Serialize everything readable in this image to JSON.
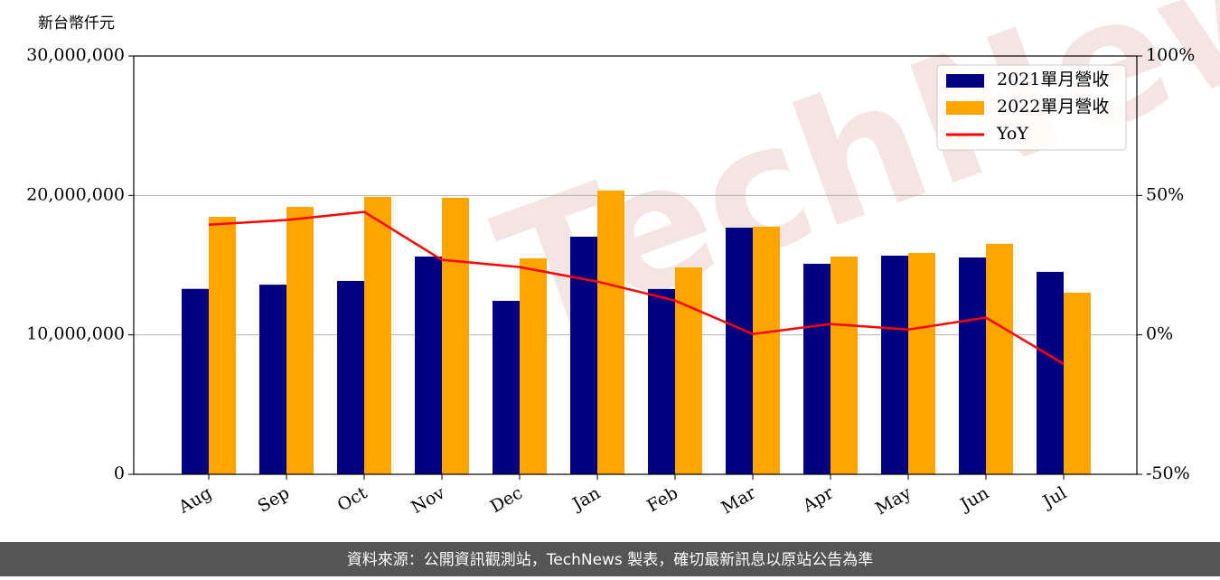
{
  "chart_data": {
    "type": "bar_line",
    "y_label": "新台幣仟元",
    "categories": [
      "Aug",
      "Sep",
      "Oct",
      "Nov",
      "Dec",
      "Jan",
      "Feb",
      "Mar",
      "Apr",
      "May",
      "Jun",
      "Jul"
    ],
    "series": [
      {
        "name": "2021單月營收",
        "color": "#000080",
        "type": "bar",
        "values": [
          13300000,
          13600000,
          13870000,
          15620000,
          12440000,
          17040000,
          13290000,
          17690000,
          15100000,
          15680000,
          15550000,
          14520000
        ]
      },
      {
        "name": "2022單月營收",
        "color": "#ffa500",
        "type": "bar",
        "values": [
          18470000,
          19180000,
          19900000,
          19830000,
          15490000,
          20350000,
          14840000,
          17760000,
          15620000,
          15880000,
          16530000,
          13030000
        ]
      },
      {
        "name": "YoY",
        "color": "#ff0000",
        "type": "line",
        "axis": "y2",
        "values": [
          39.5,
          41.2,
          44.1,
          26.9,
          24.3,
          19.1,
          12.3,
          0.3,
          3.9,
          1.9,
          6.2,
          -10.4
        ]
      }
    ],
    "ylim": [
      0,
      30000000
    ],
    "yticks": [
      {
        "value": 0,
        "label": "0"
      },
      {
        "value": 10000000,
        "label": "10,000,000"
      },
      {
        "value": 20000000,
        "label": "20,000,000"
      },
      {
        "value": 30000000,
        "label": "30,000,000"
      }
    ],
    "y2lim": [
      -50,
      100
    ],
    "y2ticks": [
      {
        "value": -50,
        "label": "-50%"
      },
      {
        "value": 0,
        "label": "0%"
      },
      {
        "value": 50,
        "label": "50%"
      },
      {
        "value": 100,
        "label": "100%"
      }
    ],
    "grid": true,
    "legend": "upper right",
    "watermark": "TechNews",
    "footer": "資料來源：公開資訊觀測站，TechNews 製表，確切最新訊息以原站公告為準"
  }
}
